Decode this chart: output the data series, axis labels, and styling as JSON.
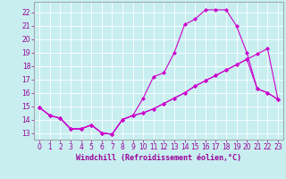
{
  "title": "",
  "xlabel": "Windchill (Refroidissement éolien,°C)",
  "ylabel": "",
  "bg_color": "#c8eef0",
  "grid_color": "#ffffff",
  "line_color": "#cc00cc",
  "xlim": [
    -0.5,
    23.5
  ],
  "ylim": [
    12.5,
    22.8
  ],
  "xticks": [
    0,
    1,
    2,
    3,
    4,
    5,
    6,
    7,
    8,
    9,
    10,
    11,
    12,
    13,
    14,
    15,
    16,
    17,
    18,
    19,
    20,
    21,
    22,
    23
  ],
  "yticks": [
    13,
    14,
    15,
    16,
    17,
    18,
    19,
    20,
    21,
    22
  ],
  "line1_x": [
    0,
    1,
    2,
    3,
    4,
    5,
    6,
    7,
    8,
    9,
    10,
    11,
    12,
    13,
    14,
    15,
    16,
    17,
    18,
    19,
    20,
    21,
    22,
    23
  ],
  "line1_y": [
    14.9,
    14.3,
    14.1,
    13.3,
    13.3,
    13.6,
    13.0,
    12.9,
    14.0,
    14.3,
    14.5,
    14.8,
    15.2,
    15.6,
    16.0,
    16.5,
    16.9,
    17.3,
    17.7,
    18.1,
    18.5,
    18.9,
    19.3,
    15.5
  ],
  "line2_x": [
    0,
    1,
    2,
    3,
    4,
    5,
    6,
    7,
    8,
    9,
    10,
    11,
    12,
    13,
    14,
    15,
    16,
    17,
    18,
    19,
    20,
    21,
    22,
    23
  ],
  "line2_y": [
    14.9,
    14.3,
    14.1,
    13.3,
    13.3,
    13.6,
    13.0,
    12.9,
    14.0,
    14.3,
    15.6,
    17.2,
    17.5,
    19.0,
    21.1,
    21.5,
    22.2,
    22.2,
    22.2,
    21.0,
    19.0,
    16.3,
    16.0,
    15.5
  ],
  "line3_x": [
    0,
    1,
    2,
    3,
    4,
    5,
    6,
    7,
    8,
    9,
    10,
    11,
    12,
    13,
    14,
    15,
    16,
    17,
    18,
    19,
    20,
    21,
    22,
    23
  ],
  "line3_y": [
    14.9,
    14.3,
    14.1,
    13.3,
    13.3,
    13.6,
    13.0,
    12.9,
    14.0,
    14.3,
    14.5,
    14.8,
    15.2,
    15.6,
    16.0,
    16.5,
    16.9,
    17.3,
    17.7,
    18.1,
    18.5,
    16.3,
    16.0,
    15.5
  ],
  "marker": "D",
  "markersize": 2,
  "linewidth": 0.8,
  "xlabel_fontsize": 6,
  "tick_fontsize": 5.5,
  "xlabel_color": "#990099",
  "tick_color": "#990099",
  "axis_color": "#999999"
}
